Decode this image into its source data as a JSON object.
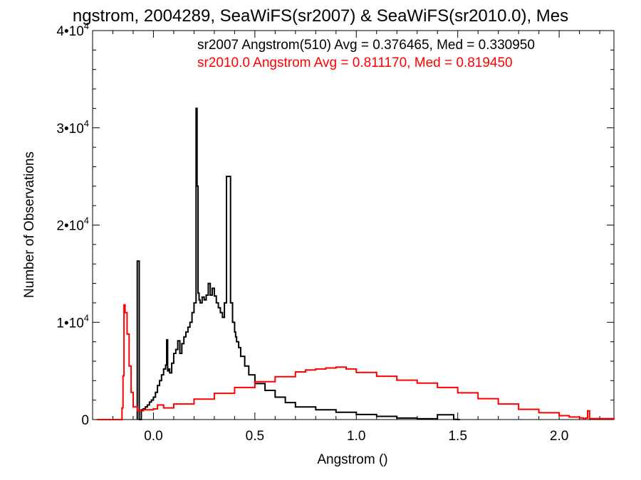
{
  "chart_data": {
    "type": "line",
    "title": "ngstrom, 2004289, SeaWiFS(sr2007) & SeaWiFS(sr2010.0), Mes",
    "xlabel": "Angstrom ()",
    "ylabel": "Number of Observations",
    "xlim": [
      -0.3,
      2.27
    ],
    "ylim": [
      0,
      40000
    ],
    "xticks": [
      {
        "value": 0.0,
        "label": "0.0"
      },
      {
        "value": 0.5,
        "label": "0.5"
      },
      {
        "value": 1.0,
        "label": "1.0"
      },
      {
        "value": 1.5,
        "label": "1.5"
      },
      {
        "value": 2.0,
        "label": "2.0"
      }
    ],
    "yticks": [
      {
        "value": 0,
        "mantissa": "0",
        "exponent": ""
      },
      {
        "value": 10000,
        "mantissa": "1•10",
        "exponent": "4"
      },
      {
        "value": 20000,
        "mantissa": "2•10",
        "exponent": "4"
      },
      {
        "value": 30000,
        "mantissa": "3•10",
        "exponent": "4"
      },
      {
        "value": 40000,
        "mantissa": "4•10",
        "exponent": "4"
      }
    ],
    "annotations": [
      {
        "text": "sr2007 Angstrom(510) Avg = 0.376465, Med = 0.330950",
        "color": "#000000"
      },
      {
        "text": "sr2010.0 Angstrom Avg = 0.811170, Med = 0.819450",
        "color": "#ff0000"
      }
    ],
    "grid": false,
    "series": [
      {
        "color": "#000000",
        "x": [
          -0.08,
          -0.08,
          -0.07,
          -0.07,
          -0.06,
          -0.05,
          -0.04,
          -0.03,
          -0.02,
          -0.01,
          0.0,
          0.01,
          0.02,
          0.03,
          0.04,
          0.05,
          0.06,
          0.065,
          0.07,
          0.075,
          0.08,
          0.09,
          0.1,
          0.11,
          0.12,
          0.13,
          0.14,
          0.15,
          0.16,
          0.17,
          0.18,
          0.19,
          0.2,
          0.21,
          0.215,
          0.22,
          0.225,
          0.23,
          0.24,
          0.25,
          0.26,
          0.27,
          0.28,
          0.29,
          0.3,
          0.31,
          0.32,
          0.33,
          0.34,
          0.35,
          0.36,
          0.38,
          0.39,
          0.4,
          0.405,
          0.41,
          0.42,
          0.43,
          0.45,
          0.47,
          0.5,
          0.55,
          0.6,
          0.65,
          0.7,
          0.8,
          0.9,
          1.0,
          1.1,
          1.2,
          1.3,
          1.4,
          1.48,
          1.5,
          1.51
        ],
        "y": [
          0,
          16300,
          16300,
          0,
          1000,
          1100,
          1300,
          1500,
          1800,
          2000,
          2300,
          2800,
          3500,
          4000,
          4600,
          5200,
          5600,
          8200,
          5000,
          5200,
          4800,
          5800,
          6800,
          7200,
          8100,
          6800,
          7800,
          8500,
          9000,
          9500,
          10000,
          11000,
          12000,
          32000,
          24000,
          13000,
          12300,
          12000,
          12600,
          12300,
          12800,
          14000,
          12800,
          13500,
          12700,
          12000,
          11500,
          11000,
          10500,
          12000,
          25000,
          12000,
          10000,
          9000,
          8500,
          8000,
          7400,
          6500,
          5500,
          4600,
          3700,
          3000,
          2300,
          1750,
          1300,
          1000,
          750,
          520,
          330,
          150,
          80,
          500,
          20,
          0,
          0
        ]
      },
      {
        "color": "#ff0000",
        "x": [
          -0.28,
          -0.16,
          -0.155,
          -0.15,
          -0.145,
          -0.14,
          -0.13,
          -0.12,
          -0.11,
          -0.1,
          -0.08,
          -0.05,
          0.0,
          0.02,
          0.05,
          0.1,
          0.2,
          0.3,
          0.4,
          0.5,
          0.6,
          0.7,
          0.75,
          0.8,
          0.85,
          0.9,
          0.95,
          1.0,
          1.1,
          1.2,
          1.3,
          1.4,
          1.5,
          1.6,
          1.7,
          1.8,
          1.9,
          2.0,
          2.05,
          2.1,
          2.12,
          2.13,
          2.14,
          2.15,
          2.27
        ],
        "y": [
          0,
          0,
          1200,
          4500,
          11800,
          11000,
          8800,
          5500,
          2800,
          1300,
          900,
          1000,
          1100,
          1500,
          1200,
          1600,
          2100,
          2700,
          3300,
          3900,
          4400,
          4900,
          5100,
          5200,
          5300,
          5400,
          5200,
          4850,
          4450,
          4050,
          3750,
          3300,
          2750,
          2150,
          1600,
          1050,
          700,
          400,
          260,
          160,
          70,
          150,
          900,
          100,
          0
        ]
      }
    ]
  }
}
